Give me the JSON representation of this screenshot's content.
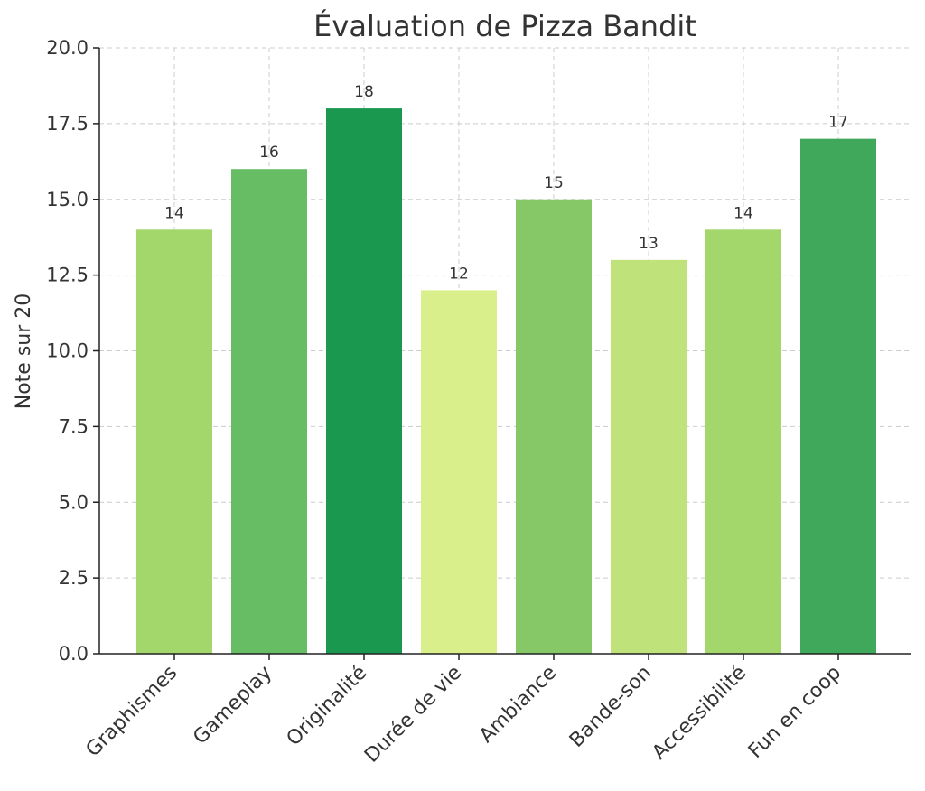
{
  "chart_data": {
    "type": "bar",
    "title": "Évaluation de Pizza Bandit",
    "xlabel": "",
    "ylabel": "Note sur 20",
    "categories": [
      "Graphismes",
      "Gameplay",
      "Originalité",
      "Durée de vie",
      "Ambiance",
      "Bande-son",
      "Accessibilité",
      "Fun en coop"
    ],
    "values": [
      14,
      16,
      18,
      12,
      15,
      13,
      14,
      17
    ],
    "data_labels": [
      "14",
      "16",
      "18",
      "12",
      "15",
      "13",
      "14",
      "17"
    ],
    "colors": [
      "#a3d76c",
      "#66bd63",
      "#1a9850",
      "#d9ef8b",
      "#86c867",
      "#bfe27b",
      "#a3d76c",
      "#3fa85a"
    ],
    "ylim": [
      0,
      20
    ],
    "yticks": [
      "0.0",
      "2.5",
      "5.0",
      "7.5",
      "10.0",
      "12.5",
      "15.0",
      "17.5",
      "20.0"
    ],
    "grid": true
  }
}
